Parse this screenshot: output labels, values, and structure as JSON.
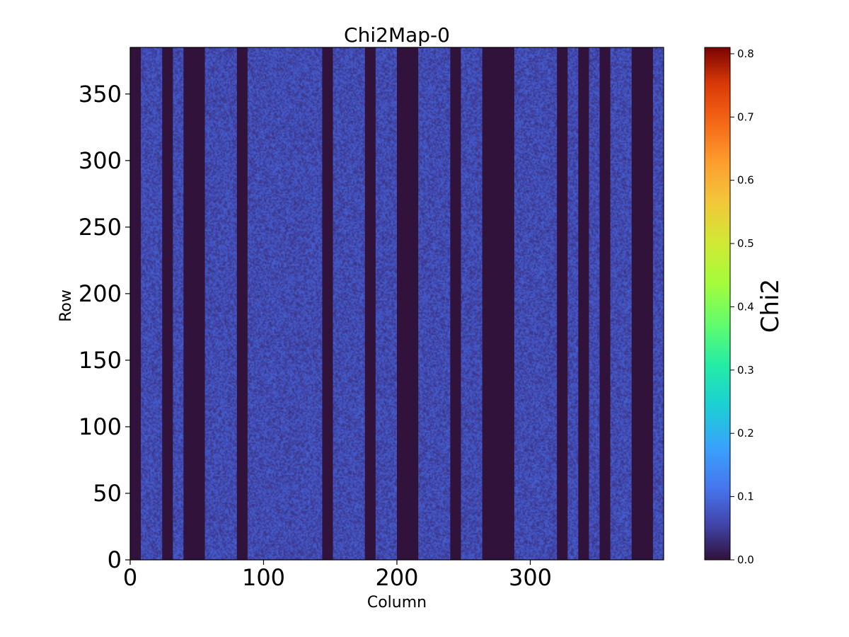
{
  "chart_data": {
    "type": "heatmap",
    "title": "Chi2Map-0",
    "xlabel": "Column",
    "ylabel": "Row",
    "xlim": [
      0,
      400
    ],
    "ylim": [
      0,
      385
    ],
    "x_ticks": [
      0,
      100,
      200,
      300
    ],
    "y_ticks": [
      0,
      50,
      100,
      150,
      200,
      250,
      300,
      350
    ],
    "colorbar": {
      "label": "Chi2",
      "colormap": "turbo",
      "range": [
        0.0,
        0.81
      ],
      "ticks": [
        0.0,
        0.1,
        0.2,
        0.3,
        0.4,
        0.5,
        0.6,
        0.7,
        0.8
      ],
      "tick_labels": [
        "0.0",
        "0.1",
        "0.2",
        "0.3",
        "0.4",
        "0.5",
        "0.6",
        "0.7",
        "0.8"
      ]
    },
    "background_value_range": [
      0.04,
      0.1
    ],
    "masked_column_ranges": [
      [
        0,
        8
      ],
      [
        24,
        32
      ],
      [
        40,
        56
      ],
      [
        80,
        88
      ],
      [
        144,
        152
      ],
      [
        176,
        184
      ],
      [
        200,
        216
      ],
      [
        240,
        248
      ],
      [
        264,
        288
      ],
      [
        320,
        328
      ],
      [
        336,
        344
      ],
      [
        352,
        360
      ],
      [
        376,
        392
      ]
    ],
    "masked_value": 0.0
  }
}
